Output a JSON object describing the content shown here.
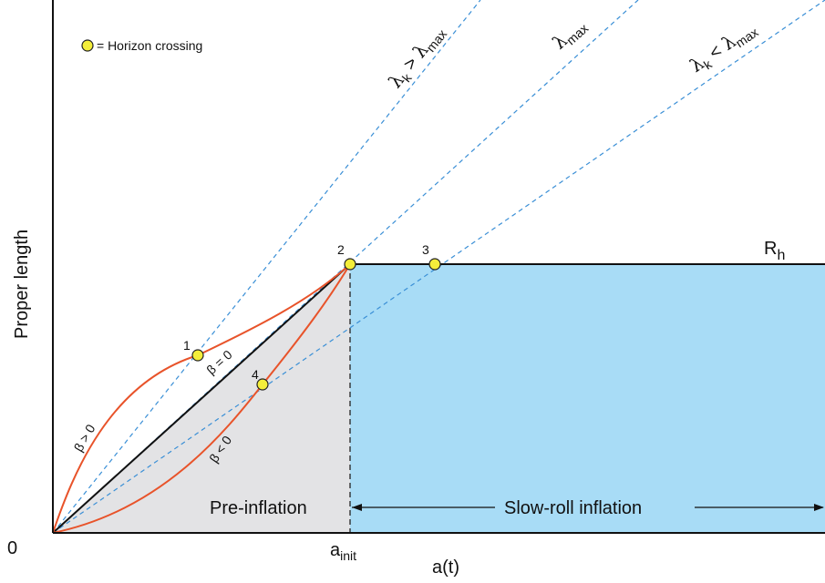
{
  "axes": {
    "y_label": "Proper length",
    "x_label": "a(t)",
    "origin_label": "0",
    "a_init_main": "a",
    "a_init_sub": "init"
  },
  "legend": {
    "text": "= Horizon crossing",
    "marker_color": "#f4ee3a"
  },
  "regions": {
    "pre_inflation": "Pre-inflation",
    "slow_roll": "Slow-roll inflation",
    "pre_inflation_color": "#e3e3e5",
    "slow_roll_color": "#a8dcf6"
  },
  "horizon": {
    "label_main": "R",
    "label_sub": "h"
  },
  "rays": {
    "steep": {
      "lhs": "λ",
      "lhs_sub": "k",
      "op": " > ",
      "rhs": "λ",
      "rhs_sub": "max"
    },
    "mid": {
      "lhs": "λ",
      "lhs_sub": "max"
    },
    "shallow": {
      "lhs": "λ",
      "lhs_sub": "k",
      "op": " < ",
      "rhs": "λ",
      "rhs_sub": "max"
    },
    "color": "#3a8fd6"
  },
  "curves": {
    "beta_pos": "β > 0",
    "beta_zero": "β = 0",
    "beta_neg": "β < 0",
    "curve_color": "#e8532a"
  },
  "points": {
    "p1": "1",
    "p2": "2",
    "p3": "3",
    "p4": "4"
  }
}
